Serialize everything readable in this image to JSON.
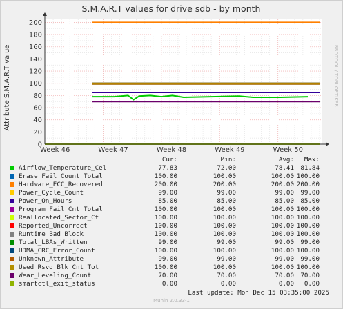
{
  "chart_data": {
    "type": "line",
    "title": "S.M.A.R.T values for drive sdb - by month",
    "ylabel": "Attribute S.M.A.R.T value",
    "xlabel": "",
    "ylim": [
      0,
      205
    ],
    "yticks": [
      0,
      20,
      40,
      60,
      80,
      100,
      120,
      140,
      160,
      180,
      200
    ],
    "xticks": [
      "Week 46",
      "Week 47",
      "Week 48",
      "Week 49",
      "Week 50"
    ],
    "grid": true,
    "watermark": "RRDTOOL / TOBI OETIKER",
    "series": [
      {
        "name": "Airflow_Temperature_Cel",
        "color": "#00cc00",
        "cur": "77.83",
        "min": "72.00",
        "avg": "78.41",
        "max": "81.84",
        "points": [
          [
            0.17,
            78
          ],
          [
            0.25,
            78
          ],
          [
            0.3,
            80
          ],
          [
            0.32,
            73
          ],
          [
            0.34,
            79
          ],
          [
            0.38,
            80
          ],
          [
            0.42,
            78
          ],
          [
            0.46,
            80
          ],
          [
            0.5,
            77
          ],
          [
            0.6,
            78
          ],
          [
            0.7,
            79
          ],
          [
            0.75,
            77
          ],
          [
            0.8,
            77
          ],
          [
            0.85,
            77
          ],
          [
            0.95,
            78
          ]
        ]
      },
      {
        "name": "Erase_Fail_Count_Total",
        "color": "#0066b3",
        "cur": "100.00",
        "min": "100.00",
        "avg": "100.00",
        "max": "100.00",
        "points": [
          [
            0.17,
            100
          ],
          [
            0.99,
            100
          ]
        ]
      },
      {
        "name": "Hardware_ECC_Recovered",
        "color": "#ff8000",
        "cur": "200.00",
        "min": "200.00",
        "avg": "200.00",
        "max": "200.00",
        "points": [
          [
            0.17,
            200
          ],
          [
            0.99,
            200
          ]
        ]
      },
      {
        "name": "Power_Cycle_Count",
        "color": "#ffcc00",
        "cur": "99.00",
        "min": "99.00",
        "avg": "99.00",
        "max": "99.00",
        "points": [
          [
            0.17,
            99
          ],
          [
            0.99,
            99
          ]
        ]
      },
      {
        "name": "Power_On_Hours",
        "color": "#330099",
        "cur": "85.00",
        "min": "85.00",
        "avg": "85.00",
        "max": "85.00",
        "points": [
          [
            0.17,
            85
          ],
          [
            0.99,
            85
          ]
        ]
      },
      {
        "name": "Program_Fail_Cnt_Total",
        "color": "#990099",
        "cur": "100.00",
        "min": "100.00",
        "avg": "100.00",
        "max": "100.00",
        "points": [
          [
            0.17,
            100
          ],
          [
            0.99,
            100
          ]
        ]
      },
      {
        "name": "Reallocated_Sector_Ct",
        "color": "#ccff00",
        "cur": "100.00",
        "min": "100.00",
        "avg": "100.00",
        "max": "100.00",
        "points": [
          [
            0.17,
            100
          ],
          [
            0.99,
            100
          ]
        ]
      },
      {
        "name": "Reported_Uncorrect",
        "color": "#ff0000",
        "cur": "100.00",
        "min": "100.00",
        "avg": "100.00",
        "max": "100.00",
        "points": [
          [
            0.17,
            100
          ],
          [
            0.99,
            100
          ]
        ]
      },
      {
        "name": "Runtime_Bad_Block",
        "color": "#808080",
        "cur": "100.00",
        "min": "100.00",
        "avg": "100.00",
        "max": "100.00",
        "points": [
          [
            0.17,
            100
          ],
          [
            0.99,
            100
          ]
        ]
      },
      {
        "name": "Total_LBAs_Written",
        "color": "#008f00",
        "cur": "99.00",
        "min": "99.00",
        "avg": "99.00",
        "max": "99.00",
        "points": [
          [
            0.17,
            99
          ],
          [
            0.99,
            99
          ]
        ]
      },
      {
        "name": "UDMA_CRC_Error_Count",
        "color": "#00487d",
        "cur": "100.00",
        "min": "100.00",
        "avg": "100.00",
        "max": "100.00",
        "points": [
          [
            0.17,
            100
          ],
          [
            0.99,
            100
          ]
        ]
      },
      {
        "name": "Unknown_Attribute",
        "color": "#b35a00",
        "cur": "99.00",
        "min": "99.00",
        "avg": "99.00",
        "max": "99.00",
        "points": [
          [
            0.17,
            99
          ],
          [
            0.99,
            99
          ]
        ]
      },
      {
        "name": "Used_Rsvd_Blk_Cnt_Tot",
        "color": "#b38f00",
        "cur": "100.00",
        "min": "100.00",
        "avg": "100.00",
        "max": "100.00",
        "points": [
          [
            0.17,
            100
          ],
          [
            0.99,
            100
          ]
        ]
      },
      {
        "name": "Wear_Leveling_Count",
        "color": "#6b006b",
        "cur": "70.00",
        "min": "70.00",
        "avg": "70.00",
        "max": "70.00",
        "points": [
          [
            0.17,
            70
          ],
          [
            0.99,
            70
          ]
        ]
      },
      {
        "name": "smartctl_exit_status",
        "color": "#8fb300",
        "cur": "0.00",
        "min": "0.00",
        "avg": "0.00",
        "max": "0.00",
        "points": [
          [
            0.0,
            0
          ],
          [
            0.99,
            0
          ]
        ]
      }
    ]
  },
  "legend_headers": {
    "cur": "Cur:",
    "min": "Min:",
    "avg": "Avg:",
    "max": "Max:"
  },
  "last_update": "Last update:  Mon Dec 15 03:35:00 2025",
  "munin_version": "Munin 2.0.33-1"
}
